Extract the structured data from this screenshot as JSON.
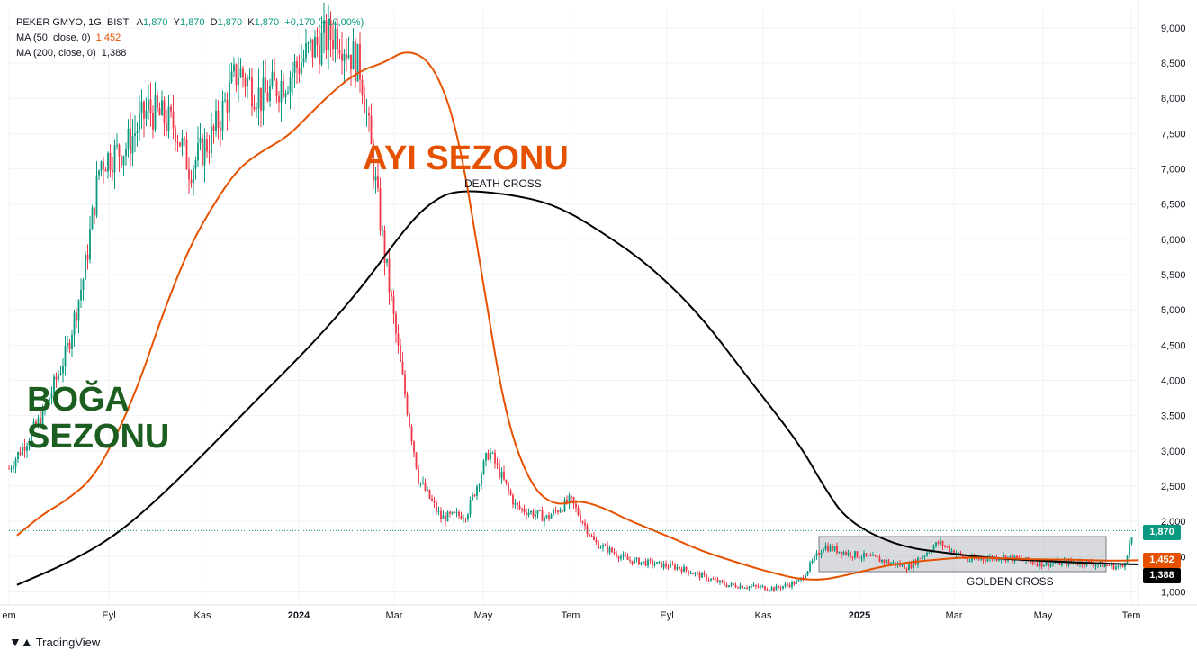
{
  "legend": {
    "title": "PEKER GMYO, 1G, BIST",
    "ohlc": [
      {
        "label": "A",
        "value": "1,870"
      },
      {
        "label": "Y",
        "value": "1,870"
      },
      {
        "label": "D",
        "value": "1,870"
      },
      {
        "label": "K",
        "value": "1,870"
      }
    ],
    "change": "+0,170 (+10,00%)",
    "ma50_label": "MA (50, close, 0)",
    "ma50_value": "1,452",
    "ma200_label": "MA (200, close, 0)",
    "ma200_value": "1,388"
  },
  "annotations": {
    "bull_line1": "BOĞA",
    "bull_line2": "SEZONU",
    "bear": "AYI SEZONU",
    "death_cross": "DEATH CROSS",
    "golden_cross": "GOLDEN CROSS"
  },
  "price_tags": {
    "last": "1,870",
    "ma50": "1,452",
    "ma200": "1,388"
  },
  "branding": {
    "logo_text": "TradingView"
  },
  "colors": {
    "up": "#089981",
    "down": "#f23645",
    "ma50": "#e65100",
    "ma200": "#000000",
    "bull_text": "#1b5e20",
    "bear_text": "#e65100"
  },
  "chart_data": {
    "type": "line",
    "title": "PEKER GMYO, 1G, BIST",
    "symbol": "PEKER GMYO",
    "interval": "1G",
    "exchange": "BIST",
    "x_ticks": [
      "em",
      "Eyl",
      "Kas",
      "2024",
      "Mar",
      "May",
      "Tem",
      "Eyl",
      "Kas",
      "2025",
      "Mar",
      "May",
      "Tem"
    ],
    "y_ticks": [
      "9,000",
      "8,500",
      "8,000",
      "7,500",
      "7,000",
      "6,500",
      "6,000",
      "5,500",
      "5,000",
      "4,500",
      "4,000",
      "3,500",
      "3,000",
      "2,500",
      "2,000",
      "1,500",
      "1,000"
    ],
    "ylim": [
      1.0,
      9.0
    ],
    "last_price": 1.87,
    "grid": true,
    "series": [
      {
        "name": "MA (50, close, 0)",
        "x": [
          "2023-07-25",
          "2023-08-10",
          "2023-08-25",
          "2023-09-10",
          "2023-09-25",
          "2023-10-10",
          "2023-10-25",
          "2023-11-10",
          "2023-11-25",
          "2023-12-10",
          "2023-12-25",
          "2024-01-10",
          "2024-01-25",
          "2024-02-10",
          "2024-02-25",
          "2024-03-10",
          "2024-03-25",
          "2024-04-10",
          "2024-04-25",
          "2024-05-10",
          "2024-05-25",
          "2024-06-10",
          "2024-06-25",
          "2024-07-10",
          "2024-07-25",
          "2024-08-10",
          "2024-08-25",
          "2024-09-10",
          "2024-09-25",
          "2024-10-10",
          "2024-10-25",
          "2024-11-10",
          "2024-11-25",
          "2024-12-10",
          "2024-12-25",
          "2025-01-10",
          "2025-01-25",
          "2025-02-10",
          "2025-02-25",
          "2025-03-10",
          "2025-03-25",
          "2025-04-10",
          "2025-04-25",
          "2025-05-10",
          "2025-05-25",
          "2025-06-10",
          "2025-06-25"
        ],
        "y": [
          1.8,
          2.1,
          2.3,
          2.6,
          3.2,
          4.0,
          5.0,
          5.9,
          6.5,
          7.0,
          7.25,
          7.45,
          7.8,
          8.15,
          8.4,
          8.5,
          8.7,
          8.5,
          7.6,
          5.6,
          3.5,
          2.5,
          2.22,
          2.3,
          2.2,
          2.02,
          1.88,
          1.73,
          1.58,
          1.47,
          1.36,
          1.26,
          1.18,
          1.17,
          1.24,
          1.33,
          1.4,
          1.44,
          1.47,
          1.49,
          1.48,
          1.47,
          1.46,
          1.46,
          1.45,
          1.44,
          1.45
        ]
      },
      {
        "name": "MA (200, close, 0)",
        "x": [
          "2023-07-25",
          "2023-08-25",
          "2023-09-25",
          "2023-10-25",
          "2023-11-25",
          "2023-12-25",
          "2024-01-25",
          "2024-02-25",
          "2024-03-25",
          "2024-04-10",
          "2024-04-25",
          "2024-05-25",
          "2024-06-25",
          "2024-07-25",
          "2024-08-25",
          "2024-09-25",
          "2024-10-25",
          "2024-11-25",
          "2024-12-10",
          "2024-12-25",
          "2025-01-25",
          "2025-02-25",
          "2025-03-25",
          "2025-04-25",
          "2025-05-25",
          "2025-06-25"
        ],
        "y": [
          1.1,
          1.4,
          1.8,
          2.4,
          3.1,
          3.8,
          4.5,
          5.3,
          6.2,
          6.55,
          6.7,
          6.65,
          6.5,
          6.1,
          5.6,
          4.9,
          4.0,
          3.1,
          2.5,
          2.0,
          1.65,
          1.55,
          1.48,
          1.44,
          1.41,
          1.39
        ]
      }
    ],
    "candles_summary": {
      "start": {
        "date": "2023-07-25",
        "close": 2.8
      },
      "peak": {
        "date": "2024-02-25",
        "high": 9.2
      },
      "trough": {
        "date": "2024-11-10",
        "low": 1.0
      },
      "last": {
        "date": "2025-06-25",
        "close": 1.87
      }
    }
  }
}
